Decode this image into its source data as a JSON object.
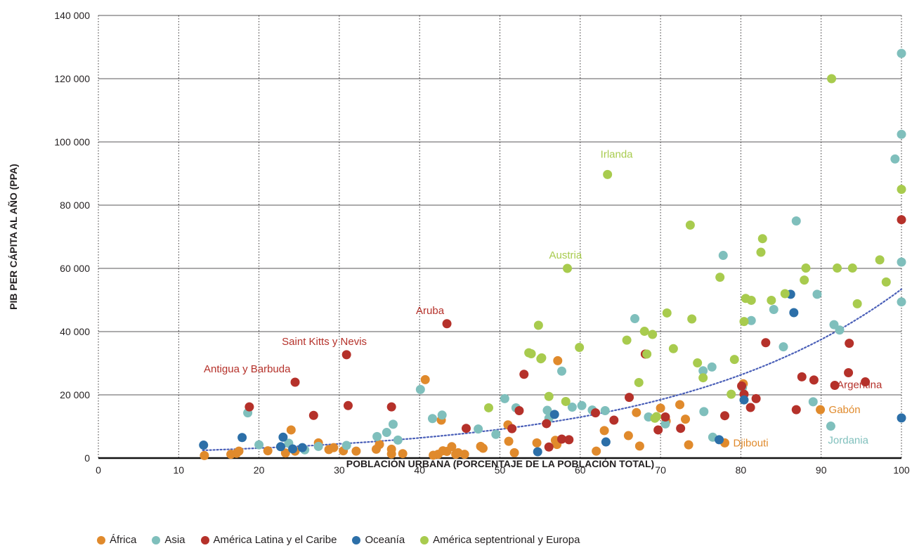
{
  "chart_data": {
    "type": "scatter",
    "xlabel": "POBLACIÓN URBANA (PORCENTAJE DE LA POBLACIÓN TOTAL)",
    "ylabel": "PIB PER CÁPITA AL AÑO (PPA)",
    "xlim": [
      0,
      100
    ],
    "ylim": [
      0,
      140000
    ],
    "x_ticks": [
      0,
      10,
      20,
      30,
      40,
      50,
      60,
      70,
      80,
      90,
      100
    ],
    "y_ticks": [
      0,
      20000,
      40000,
      60000,
      80000,
      100000,
      120000,
      140000
    ],
    "x_tick_labels": [
      "0",
      "10",
      "20",
      "30",
      "40",
      "50",
      "60",
      "70",
      "80",
      "90",
      "100"
    ],
    "y_tick_labels": [
      "0",
      "20 000",
      "40 000",
      "60 000",
      "80 000",
      "100 000",
      "120 000",
      "140 000"
    ],
    "grid": {
      "horizontal": "solid",
      "vertical": "dotted"
    },
    "legend_position": "bottom-left",
    "series": [
      {
        "name": "África",
        "color": "#e08a2c",
        "points": [
          [
            13.2,
            800
          ],
          [
            16.5,
            1200
          ],
          [
            17.2,
            1500
          ],
          [
            17.5,
            2200
          ],
          [
            21.1,
            2300
          ],
          [
            23.3,
            1600
          ],
          [
            24,
            8900
          ],
          [
            24.5,
            2200
          ],
          [
            27.4,
            4800
          ],
          [
            28.7,
            2700
          ],
          [
            29.3,
            3300
          ],
          [
            30.5,
            2300
          ],
          [
            32.1,
            2200
          ],
          [
            34.6,
            2800
          ],
          [
            35,
            4300
          ],
          [
            36.5,
            2800
          ],
          [
            36.5,
            1300
          ],
          [
            37.9,
            1400
          ],
          [
            40.7,
            24800
          ],
          [
            41.7,
            900
          ],
          [
            42.3,
            1200
          ],
          [
            42.7,
            12000
          ],
          [
            42.9,
            2300
          ],
          [
            43.4,
            2100
          ],
          [
            44,
            3600
          ],
          [
            44.5,
            1200
          ],
          [
            44.8,
            1700
          ],
          [
            45.6,
            1200
          ],
          [
            47.6,
            3700
          ],
          [
            47.9,
            3100
          ],
          [
            51,
            10500
          ],
          [
            51.1,
            5300
          ],
          [
            51.8,
            1700
          ],
          [
            54.6,
            4800
          ],
          [
            56.9,
            5600
          ],
          [
            57.1,
            4300
          ],
          [
            57.2,
            30800
          ],
          [
            62,
            2200
          ],
          [
            63,
            8700
          ],
          [
            66,
            7100
          ],
          [
            67,
            14400
          ],
          [
            67.4,
            3800
          ],
          [
            70,
            15800
          ],
          [
            70.7,
            11700
          ],
          [
            72.4,
            16900
          ],
          [
            73.1,
            12300
          ],
          [
            73.5,
            4200
          ],
          [
            80.2,
            22700
          ],
          [
            80.3,
            23500
          ],
          [
            89.9,
            15300
          ],
          [
            78,
            4800
          ]
        ]
      },
      {
        "name": "Asia",
        "color": "#7fbfbc",
        "points": [
          [
            18.6,
            14300
          ],
          [
            20,
            4200
          ],
          [
            23.7,
            4700
          ],
          [
            25.7,
            2600
          ],
          [
            27.4,
            3700
          ],
          [
            30.9,
            4000
          ],
          [
            34.7,
            6800
          ],
          [
            35.9,
            8100
          ],
          [
            36.7,
            10700
          ],
          [
            37.3,
            5700
          ],
          [
            40.1,
            21700
          ],
          [
            41.6,
            12500
          ],
          [
            42.8,
            13600
          ],
          [
            47.3,
            9200
          ],
          [
            49.5,
            7500
          ],
          [
            50.6,
            18800
          ],
          [
            52,
            15900
          ],
          [
            55.9,
            15100
          ],
          [
            56.1,
            12600
          ],
          [
            57.7,
            27500
          ],
          [
            59,
            16100
          ],
          [
            60.2,
            16600
          ],
          [
            61.5,
            15200
          ],
          [
            63.1,
            15000
          ],
          [
            66.8,
            44100
          ],
          [
            68.5,
            13000
          ],
          [
            70.6,
            10800
          ],
          [
            75.3,
            27600
          ],
          [
            75.4,
            14700
          ],
          [
            76.4,
            28800
          ],
          [
            76.5,
            6600
          ],
          [
            77.8,
            64100
          ],
          [
            80.2,
            22300
          ],
          [
            81.3,
            43500
          ],
          [
            84.1,
            47000
          ],
          [
            85.3,
            35200
          ],
          [
            86.9,
            75000
          ],
          [
            89,
            17800
          ],
          [
            89.5,
            51800
          ],
          [
            91.2,
            10100
          ],
          [
            91.6,
            42200
          ],
          [
            92.3,
            40500
          ],
          [
            99.2,
            94600
          ],
          [
            100,
            128000
          ],
          [
            100,
            102400
          ],
          [
            100,
            62000
          ],
          [
            100,
            49400
          ]
        ]
      },
      {
        "name": "América Latina y el Caribe",
        "color": "#b5312a",
        "points": [
          [
            18.8,
            16200
          ],
          [
            24.5,
            24000
          ],
          [
            26.8,
            13500
          ],
          [
            30.9,
            32700
          ],
          [
            31.1,
            16600
          ],
          [
            36.5,
            16200
          ],
          [
            43.4,
            42500
          ],
          [
            45.8,
            9400
          ],
          [
            51.5,
            9300
          ],
          [
            52.4,
            15000
          ],
          [
            53,
            26500
          ],
          [
            55.8,
            10900
          ],
          [
            56.1,
            3500
          ],
          [
            57.7,
            6000
          ],
          [
            58.6,
            5800
          ],
          [
            61.9,
            14300
          ],
          [
            64.2,
            12000
          ],
          [
            66.1,
            19200
          ],
          [
            68.1,
            32900
          ],
          [
            69.7,
            8900
          ],
          [
            70.6,
            13000
          ],
          [
            72.5,
            9400
          ],
          [
            78,
            13400
          ],
          [
            80.1,
            22800
          ],
          [
            80.4,
            20200
          ],
          [
            81.2,
            16000
          ],
          [
            81.9,
            18800
          ],
          [
            83.1,
            36500
          ],
          [
            86.9,
            15300
          ],
          [
            87.6,
            25700
          ],
          [
            89.1,
            24700
          ],
          [
            91.7,
            23000
          ],
          [
            93.4,
            27000
          ],
          [
            93.5,
            36300
          ],
          [
            95.5,
            24100
          ],
          [
            100,
            75400
          ]
        ]
      },
      {
        "name": "Oceanía",
        "color": "#2c6fa8",
        "points": [
          [
            13.1,
            4100
          ],
          [
            17.9,
            6500
          ],
          [
            22.7,
            3600
          ],
          [
            23,
            6600
          ],
          [
            24.2,
            2900
          ],
          [
            25.4,
            3300
          ],
          [
            54.7,
            2000
          ],
          [
            56.8,
            13800
          ],
          [
            63.2,
            5100
          ],
          [
            77.3,
            5800
          ],
          [
            80.4,
            18400
          ],
          [
            86.2,
            51800
          ],
          [
            86.6,
            46000
          ],
          [
            100,
            12700
          ]
        ]
      },
      {
        "name": "América septentrional y Europa",
        "color": "#a8cb4e",
        "points": [
          [
            48.6,
            15900
          ],
          [
            53.6,
            33300
          ],
          [
            53.9,
            33000
          ],
          [
            54.8,
            42000
          ],
          [
            55.1,
            31400
          ],
          [
            55.2,
            31700
          ],
          [
            56.1,
            19500
          ],
          [
            58.2,
            17900
          ],
          [
            58.4,
            60000
          ],
          [
            59.9,
            35000
          ],
          [
            65.8,
            37300
          ],
          [
            67.3,
            23900
          ],
          [
            68,
            40100
          ],
          [
            68.3,
            32900
          ],
          [
            69,
            39100
          ],
          [
            69.3,
            12600
          ],
          [
            69.5,
            13100
          ],
          [
            70.8,
            45900
          ],
          [
            71.6,
            34600
          ],
          [
            73.7,
            73700
          ],
          [
            73.9,
            44000
          ],
          [
            74.6,
            30100
          ],
          [
            75.3,
            25400
          ],
          [
            77.4,
            57200
          ],
          [
            78.8,
            20200
          ],
          [
            79.2,
            31200
          ],
          [
            80.4,
            43200
          ],
          [
            80.6,
            50500
          ],
          [
            81.3,
            49900
          ],
          [
            82.5,
            65100
          ],
          [
            82.7,
            69400
          ],
          [
            83.8,
            49900
          ],
          [
            85.5,
            52000
          ],
          [
            87.9,
            56300
          ],
          [
            88.1,
            60100
          ],
          [
            92,
            60100
          ],
          [
            93.9,
            60100
          ],
          [
            94.5,
            48800
          ],
          [
            97.3,
            62700
          ],
          [
            98.1,
            55700
          ],
          [
            100,
            85000
          ],
          [
            91.3,
            120000
          ],
          [
            63.4,
            89700
          ]
        ]
      }
    ],
    "trendline": {
      "type": "exponential",
      "a": 1550,
      "b": 0.0354,
      "x_start": 13,
      "x_end": 100,
      "color": "#4a5fb8"
    },
    "annotations": [
      {
        "text": "Irlanda",
        "x": 63.4,
        "y": 89700,
        "series": "América septentrional y Europa"
      },
      {
        "text": "Austria",
        "x": 58.4,
        "y": 60000,
        "series": "América septentrional y Europa"
      },
      {
        "text": "Aruba",
        "x": 43.4,
        "y": 42500,
        "series": "América Latina y el Caribe"
      },
      {
        "text": "Saint Kitts y Nevis",
        "x": 30.9,
        "y": 32700,
        "series": "América Latina y el Caribe"
      },
      {
        "text": "Antigua y Barbuda",
        "x": 24.5,
        "y": 24000,
        "series": "América Latina y el Caribe"
      },
      {
        "text": "Argentina",
        "x": 91.7,
        "y": 23000,
        "series": "América Latina y el Caribe"
      },
      {
        "text": "Gabón",
        "x": 89.9,
        "y": 15300,
        "series": "África"
      },
      {
        "text": "Djibouti",
        "x": 78,
        "y": 4800,
        "series": "África"
      },
      {
        "text": "Jordania",
        "x": 91.2,
        "y": 10100,
        "series": "Asia"
      }
    ]
  }
}
